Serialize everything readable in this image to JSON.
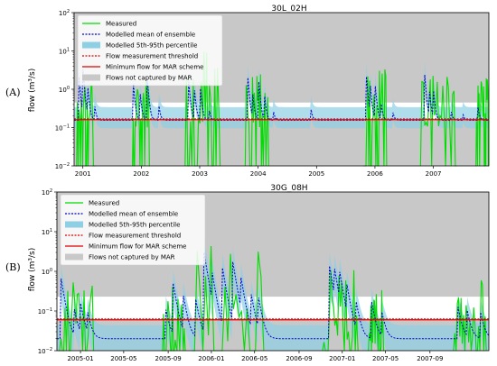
{
  "panel_letters": [
    "(A)",
    "(B)"
  ],
  "legend_items": [
    {
      "label": "Measured",
      "kind": "line",
      "color": "#00dd00",
      "dash": ""
    },
    {
      "label": "Modelled mean of ensemble",
      "kind": "line",
      "color": "#0000cc",
      "dash": "2,1.5"
    },
    {
      "label": "Modelled 5th-95th percentile",
      "kind": "patch",
      "color": "#8ecfe3"
    },
    {
      "label": "Flow measurement threshold",
      "kind": "line",
      "color": "#dd0000",
      "dash": "2,1.5"
    },
    {
      "label": "Minimum flow for MAR scheme",
      "kind": "line",
      "color": "#dd0000",
      "dash": ""
    },
    {
      "label": "Flows not captured by MAR",
      "kind": "patch",
      "color": "#c8c8c8"
    }
  ],
  "colors": {
    "measured": "#00dd00",
    "modelled_mean": "#0000cc",
    "percentile_band": "#8ecfe3",
    "threshold": "#dd0000",
    "min_flow": "#dd0000",
    "not_captured": "#c8c8c8"
  },
  "chart_data": [
    {
      "type": "line",
      "title": "30L_02H",
      "ylabel": "flow (m³/s)",
      "yscale": "log",
      "ylim": [
        0.01,
        100
      ],
      "y_ticks": [
        {
          "value": 0.01,
          "mant": "10",
          "exp": "−2"
        },
        {
          "value": 0.1,
          "mant": "10",
          "exp": "−1"
        },
        {
          "value": 1,
          "mant": "10",
          "exp": "0"
        },
        {
          "value": 10,
          "mant": "10",
          "exp": "1"
        },
        {
          "value": 100,
          "mant": "10",
          "exp": "2"
        }
      ],
      "xlim": [
        2000.85,
        2007.95
      ],
      "x_ticks": [
        {
          "value": 2001,
          "label": "2001"
        },
        {
          "value": 2002,
          "label": "2002"
        },
        {
          "value": 2003,
          "label": "2003"
        },
        {
          "value": 2004,
          "label": "2004"
        },
        {
          "value": 2005,
          "label": "2005"
        },
        {
          "value": 2006,
          "label": "2006"
        },
        {
          "value": 2007,
          "label": "2007"
        }
      ],
      "flow_measurement_threshold": 0.16,
      "minimum_flow_mar": 0.16,
      "not_captured_above": 0.45,
      "base_flow": 0.155,
      "events": [
        {
          "t": 2000.93,
          "peak": 2.5
        },
        {
          "t": 2001.0,
          "peak": 3.5
        },
        {
          "t": 2001.07,
          "peak": 2.0
        },
        {
          "t": 2001.2,
          "peak": 0.4
        },
        {
          "t": 2001.85,
          "peak": 2.5
        },
        {
          "t": 2001.97,
          "peak": 1.2
        },
        {
          "t": 2002.1,
          "peak": 2.0
        },
        {
          "t": 2002.3,
          "peak": 0.4
        },
        {
          "t": 2002.8,
          "peak": 2.5
        },
        {
          "t": 2002.9,
          "peak": 1.5
        },
        {
          "t": 2003.0,
          "peak": 1.8
        },
        {
          "t": 2003.15,
          "peak": 0.4
        },
        {
          "t": 2003.82,
          "peak": 2.5
        },
        {
          "t": 2003.9,
          "peak": 1.0
        },
        {
          "t": 2004.0,
          "peak": 2.5
        },
        {
          "t": 2004.1,
          "peak": 1.0
        },
        {
          "t": 2004.25,
          "peak": 0.35
        },
        {
          "t": 2004.9,
          "peak": 0.35
        },
        {
          "t": 2005.85,
          "peak": 2.5
        },
        {
          "t": 2005.92,
          "peak": 1.2
        },
        {
          "t": 2006.0,
          "peak": 1.5
        },
        {
          "t": 2006.1,
          "peak": 0.5
        },
        {
          "t": 2006.3,
          "peak": 0.3
        },
        {
          "t": 2006.85,
          "peak": 2.5
        },
        {
          "t": 2006.92,
          "peak": 1.5
        },
        {
          "t": 2007.0,
          "peak": 1.0
        },
        {
          "t": 2007.3,
          "peak": 0.3
        },
        {
          "t": 2007.5,
          "peak": 0.25
        },
        {
          "t": 2007.75,
          "peak": 0.5
        }
      ],
      "measured_bursts": [
        {
          "t0": 2000.88,
          "t1": 2001.22,
          "peak": 3.0
        },
        {
          "t0": 2001.85,
          "t1": 2002.15,
          "peak": 2.0
        },
        {
          "t0": 2002.75,
          "t1": 2003.35,
          "peak": 14.0
        },
        {
          "t0": 2003.78,
          "t1": 2004.18,
          "peak": 3.0
        },
        {
          "t0": 2005.8,
          "t1": 2006.2,
          "peak": 3.5
        },
        {
          "t0": 2006.78,
          "t1": 2007.4,
          "peak": 2.5
        },
        {
          "t0": 2007.72,
          "t1": 2007.95,
          "peak": 2.0
        }
      ]
    },
    {
      "type": "line",
      "title": "30G_08H",
      "ylabel": "flow (m³/s)",
      "yscale": "log",
      "ylim": [
        0.01,
        100
      ],
      "y_ticks": [
        {
          "value": 0.01,
          "mant": "10",
          "exp": "−2"
        },
        {
          "value": 0.1,
          "mant": "10",
          "exp": "−1"
        },
        {
          "value": 1,
          "mant": "10",
          "exp": "0"
        },
        {
          "value": 10,
          "mant": "10",
          "exp": "1"
        },
        {
          "value": 100,
          "mant": "10",
          "exp": "2"
        }
      ],
      "xlim": [
        2004.82,
        2008.12
      ],
      "x_ticks": [
        {
          "value": 2005.0,
          "label": "2005-01"
        },
        {
          "value": 2005.33,
          "label": "2005-05"
        },
        {
          "value": 2005.67,
          "label": "2005-09"
        },
        {
          "value": 2006.0,
          "label": "2006-01"
        },
        {
          "value": 2006.33,
          "label": "2006-05"
        },
        {
          "value": 2006.67,
          "label": "2006-09"
        },
        {
          "value": 2007.0,
          "label": "2007-01"
        },
        {
          "value": 2007.33,
          "label": "2007-05"
        },
        {
          "value": 2007.67,
          "label": "2007-09"
        }
      ],
      "flow_measurement_threshold": 0.06,
      "minimum_flow_mar": 0.06,
      "not_captured_above": 0.23,
      "base_flow": 0.02,
      "events": [
        {
          "t": 2004.85,
          "peak": 0.7
        },
        {
          "t": 2004.95,
          "peak": 0.12
        },
        {
          "t": 2005.0,
          "peak": 0.15
        },
        {
          "t": 2005.05,
          "peak": 0.1
        },
        {
          "t": 2005.65,
          "peak": 0.12
        },
        {
          "t": 2005.7,
          "peak": 0.7
        },
        {
          "t": 2005.78,
          "peak": 0.3
        },
        {
          "t": 2005.88,
          "peak": 0.2
        },
        {
          "t": 2005.94,
          "peak": 3.5
        },
        {
          "t": 2006.0,
          "peak": 1.0
        },
        {
          "t": 2006.08,
          "peak": 1.5
        },
        {
          "t": 2006.16,
          "peak": 2.0
        },
        {
          "t": 2006.22,
          "peak": 0.8
        },
        {
          "t": 2006.3,
          "peak": 0.3
        },
        {
          "t": 2006.36,
          "peak": 0.2
        },
        {
          "t": 2006.9,
          "peak": 1.5
        },
        {
          "t": 2006.94,
          "peak": 1.0
        },
        {
          "t": 2006.98,
          "peak": 0.8
        },
        {
          "t": 2007.03,
          "peak": 0.5
        },
        {
          "t": 2007.1,
          "peak": 0.2
        },
        {
          "t": 2007.22,
          "peak": 0.2
        },
        {
          "t": 2007.3,
          "peak": 0.1
        },
        {
          "t": 2007.88,
          "peak": 0.15
        },
        {
          "t": 2007.95,
          "peak": 0.12
        },
        {
          "t": 2008.05,
          "peak": 0.12
        }
      ],
      "measured_bursts": [
        {
          "t0": 2004.83,
          "t1": 2005.1,
          "peak": 0.7
        },
        {
          "t0": 2005.62,
          "t1": 2005.8,
          "peak": 0.8
        },
        {
          "t0": 2005.85,
          "t1": 2006.4,
          "peak": 8.0
        },
        {
          "t0": 2006.85,
          "t1": 2007.12,
          "peak": 2.5
        },
        {
          "t0": 2007.2,
          "t1": 2007.32,
          "peak": 0.6
        },
        {
          "t0": 2007.85,
          "t1": 2008.1,
          "peak": 0.6
        }
      ]
    }
  ]
}
